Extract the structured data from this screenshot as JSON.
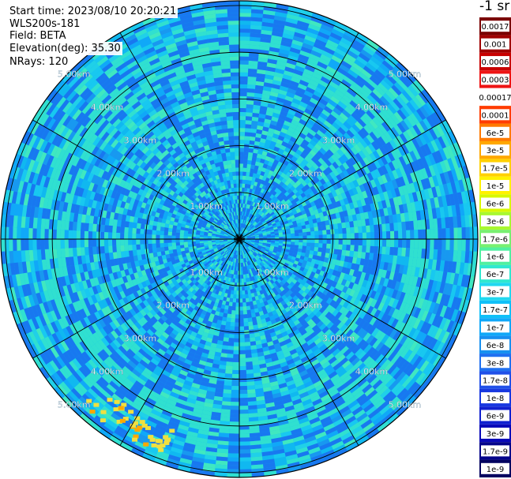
{
  "info": {
    "start_time": "Start time: 2023/08/10 20:20:21",
    "instrument": "WLS200s-181",
    "field": "Field: BETA",
    "elevation": "Elevation(deg): 35.30",
    "nrays": "NRays: 120"
  },
  "chart_data": {
    "type": "heatmap",
    "subtype": "polar-ppi",
    "range_rings_km": [
      1,
      2,
      3,
      4,
      5
    ],
    "range_max_km": 5.1,
    "ring_labels": [
      "1.00km",
      "2.00km",
      "3.00km",
      "4.00km",
      "5.00km"
    ],
    "spokes_deg": [
      0,
      30,
      60,
      90,
      120,
      150,
      180,
      210,
      240,
      270,
      300,
      330
    ],
    "colorbar": {
      "unit_label": "-1 sr",
      "tick_labels": [
        "0.0017",
        "0.001",
        "0.0006",
        "0.0003",
        "0.00017",
        "0.0001",
        "6e-5",
        "3e-5",
        "1.7e-5",
        "1e-5",
        "6e-6",
        "3e-6",
        "1.7e-6",
        "1e-6",
        "6e-7",
        "3e-7",
        "1.7e-7",
        "1e-7",
        "6e-8",
        "3e-8",
        "1.7e-8",
        "1e-8",
        "6e-9",
        "3e-9",
        "1.7e-9",
        "1e-9"
      ],
      "colors": [
        "#7a0000",
        "#a00000",
        "#c80000",
        "#ee1414",
        "#ffffff",
        "#ff3c00",
        "#ff7a00",
        "#ffa800",
        "#ffd000",
        "#fff200",
        "#d8f800",
        "#a8f830",
        "#78f070",
        "#50f0a0",
        "#30e8d0",
        "#20d8f0",
        "#10c0f8",
        "#10a8f8",
        "#1890f0",
        "#2070f0",
        "#2050e8",
        "#1838e0",
        "#1020d0",
        "#0808b8",
        "#04048a",
        "#020260"
      ]
    },
    "field_description_levels": {
      "background": "#10b8f0",
      "ring_band": "#30e0d0",
      "low": "#1878f0",
      "hot": "#f0e040"
    }
  }
}
